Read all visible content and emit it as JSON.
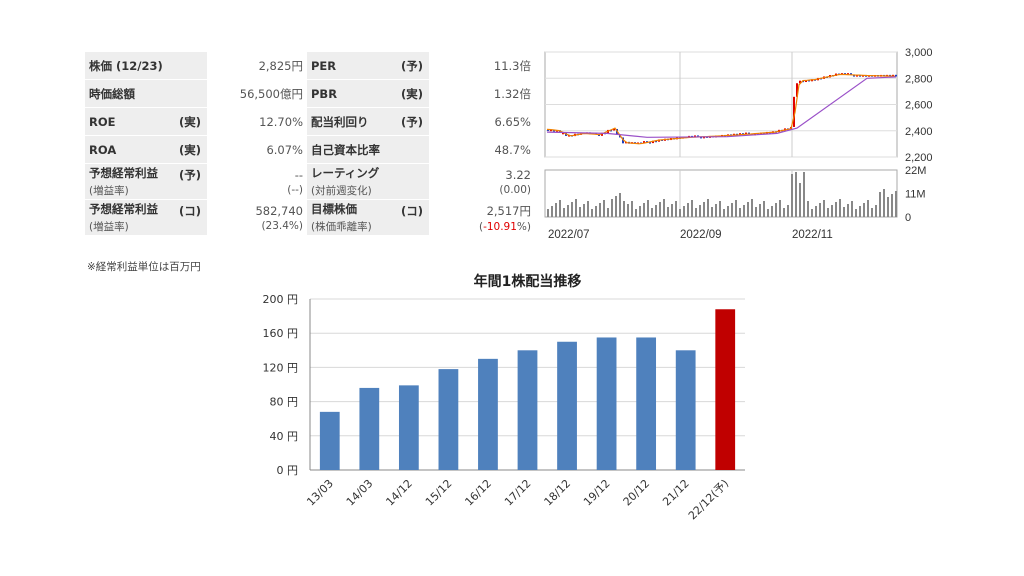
{
  "stats": {
    "rows": [
      {
        "l_label": "株価 (12/23)",
        "l_tag": "",
        "l_value": "2,825円",
        "r_label": "PER",
        "r_tag": "(予)",
        "r_value": "11.3倍"
      },
      {
        "l_label": "時価総額",
        "l_tag": "",
        "l_value": "56,500億円",
        "r_label": "PBR",
        "r_tag": "(実)",
        "r_value": "1.32倍"
      },
      {
        "l_label": "ROE",
        "l_tag": "(実)",
        "l_value": "12.70%",
        "r_label": "配当利回り",
        "r_tag": "(予)",
        "r_value": "6.65%"
      },
      {
        "l_label": "ROA",
        "l_tag": "(実)",
        "l_value": "6.07%",
        "r_label": "自己資本比率",
        "r_tag": "",
        "r_value": "48.7%"
      }
    ],
    "rows2": [
      {
        "l_label": "予想経常利益",
        "l_tag": "(予)",
        "l_sub": "(増益率)",
        "l_value": "--",
        "l_subvalue": "(--)",
        "r_label": "レーティング",
        "r_tag": "",
        "r_sub": "(対前週変化)",
        "r_value": "3.22",
        "r_subvalue": "(0.00)"
      },
      {
        "l_label": "予想経常利益",
        "l_tag": "(コ)",
        "l_sub": "(増益率)",
        "l_value": "582,740",
        "l_subvalue": "(23.4%)",
        "r_label": "目標株価",
        "r_tag": "(コ)",
        "r_sub": "(株価乖離率)",
        "r_value": "2,517円",
        "r_subvalue_pre": "(",
        "r_subvalue_neg": "-10.91",
        "r_subvalue_post": "%)"
      }
    ],
    "note": "※経常利益単位は百万円"
  },
  "stock_chart": {
    "price_ticks": [
      "3,000",
      "2,800",
      "2,600",
      "2,400",
      "2,200"
    ],
    "price_tick_values": [
      3000,
      2800,
      2600,
      2400,
      2200
    ],
    "volume_ticks": [
      "22M",
      "11M",
      "0"
    ],
    "date_labels": [
      "2022/07",
      "2022/09",
      "2022/11"
    ],
    "colors": {
      "up": "#e00000",
      "down": "#1f3fbf",
      "ma_short": "#f08000",
      "ma_long": "#9a50c8",
      "volume": "#888888"
    }
  },
  "chart_data": {
    "type": "bar",
    "title": "年間1株配当推移",
    "categories": [
      "13/03",
      "14/03",
      "14/12",
      "15/12",
      "16/12",
      "17/12",
      "18/12",
      "19/12",
      "20/12",
      "21/12",
      "22/12(予)"
    ],
    "values": [
      68,
      96,
      99,
      118,
      130,
      140,
      150,
      155,
      155,
      140,
      188
    ],
    "ylim": [
      0,
      200
    ],
    "yticks": [
      0,
      40,
      80,
      120,
      160,
      200
    ],
    "ytick_labels": [
      "0 円",
      "40 円",
      "80 円",
      "120 円",
      "160 円",
      "200 円"
    ],
    "colors": {
      "actual": "#4f81bd",
      "forecast": "#c00000"
    }
  }
}
